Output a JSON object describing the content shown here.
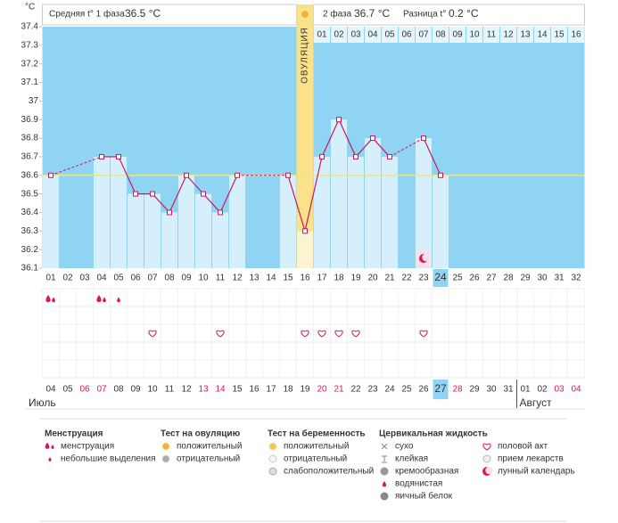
{
  "header": {
    "unit": "°C",
    "phase1_label": "Средняя t° 1 фаза",
    "phase1_value": "36.5 °C",
    "phase2_label": "2 фаза",
    "phase2_value": "36.7 °C",
    "diff_label": "Разница t°",
    "diff_value": "0.2 °C"
  },
  "chart_data": {
    "type": "line",
    "categories": [
      "01",
      "02",
      "03",
      "04",
      "05",
      "06",
      "07",
      "08",
      "09",
      "10",
      "11",
      "12",
      "13",
      "14",
      "15",
      "16",
      "17",
      "18",
      "19",
      "20",
      "21",
      "22",
      "23",
      "24",
      "25",
      "26",
      "27",
      "28",
      "29",
      "30",
      "31",
      "32"
    ],
    "values": [
      36.6,
      null,
      null,
      36.7,
      36.7,
      36.5,
      36.5,
      36.4,
      36.6,
      36.5,
      36.4,
      36.6,
      null,
      null,
      36.6,
      36.3,
      36.7,
      36.9,
      36.7,
      36.8,
      36.7,
      null,
      36.8,
      36.6,
      null,
      null,
      null,
      null,
      null,
      null,
      null,
      null
    ],
    "ylim": [
      36.1,
      37.4
    ],
    "yticks": [
      36.1,
      36.2,
      36.3,
      36.4,
      36.5,
      36.6,
      36.7,
      36.8,
      36.9,
      37,
      37.1,
      37.2,
      37.3,
      37.4
    ],
    "coverline": 36.6,
    "ovulation": {
      "label": "ОВУЛЯЦИЯ",
      "day": "16"
    },
    "phase2_days": [
      "01",
      "02",
      "03",
      "04",
      "05",
      "06",
      "07",
      "08",
      "09",
      "10",
      "11",
      "12",
      "13",
      "14",
      "15",
      "16"
    ],
    "current_day": "24",
    "line_color": "#c8185a",
    "bar_color": "#d6effc",
    "background": "#8fd4f2"
  },
  "records": {
    "menstruation": [
      "01",
      "04"
    ],
    "spotting": [
      "05"
    ],
    "intercourse": [
      "07",
      "11",
      "16",
      "17",
      "18",
      "19",
      "23"
    ],
    "lunar": [
      "23"
    ]
  },
  "dates": [
    {
      "label": "04",
      "weekend": false
    },
    {
      "label": "05",
      "weekend": false
    },
    {
      "label": "06",
      "weekend": true
    },
    {
      "label": "07",
      "weekend": true
    },
    {
      "label": "08",
      "weekend": false
    },
    {
      "label": "09",
      "weekend": false
    },
    {
      "label": "10",
      "weekend": false
    },
    {
      "label": "11",
      "weekend": false
    },
    {
      "label": "12",
      "weekend": false
    },
    {
      "label": "13",
      "weekend": true
    },
    {
      "label": "14",
      "weekend": true
    },
    {
      "label": "15",
      "weekend": false
    },
    {
      "label": "16",
      "weekend": false
    },
    {
      "label": "17",
      "weekend": false
    },
    {
      "label": "18",
      "weekend": false
    },
    {
      "label": "19",
      "weekend": false
    },
    {
      "label": "20",
      "weekend": true
    },
    {
      "label": "21",
      "weekend": true
    },
    {
      "label": "22",
      "weekend": false
    },
    {
      "label": "23",
      "weekend": false
    },
    {
      "label": "24",
      "weekend": false
    },
    {
      "label": "25",
      "weekend": false
    },
    {
      "label": "26",
      "weekend": false
    },
    {
      "label": "27",
      "weekend": true,
      "current": true
    },
    {
      "label": "28",
      "weekend": true
    },
    {
      "label": "29",
      "weekend": false
    },
    {
      "label": "30",
      "weekend": false
    },
    {
      "label": "31",
      "weekend": false
    },
    {
      "label": "01",
      "weekend": false
    },
    {
      "label": "02",
      "weekend": false
    },
    {
      "label": "03",
      "weekend": true
    },
    {
      "label": "04",
      "weekend": true
    }
  ],
  "months": [
    {
      "label": "Июль",
      "starts_at": "04"
    },
    {
      "label": "Август",
      "starts_at": "01"
    }
  ],
  "legend": [
    {
      "title": "Менструация",
      "items": [
        "менструация",
        "небольшие выделения"
      ]
    },
    {
      "title": "Тест на овуляцию",
      "items": [
        "положительный",
        "отрицательный"
      ]
    },
    {
      "title": "Тест на беременность",
      "items": [
        "положительный",
        "отрицательный",
        "слабоположительный"
      ]
    },
    {
      "title": "Цервикальная жидкость",
      "items": [
        "сухо",
        "клейкая",
        "кремообразная",
        "водянистая",
        "яичный белок"
      ]
    },
    {
      "items": [
        "половой акт",
        "прием лекарств",
        "лунный календарь"
      ]
    }
  ]
}
